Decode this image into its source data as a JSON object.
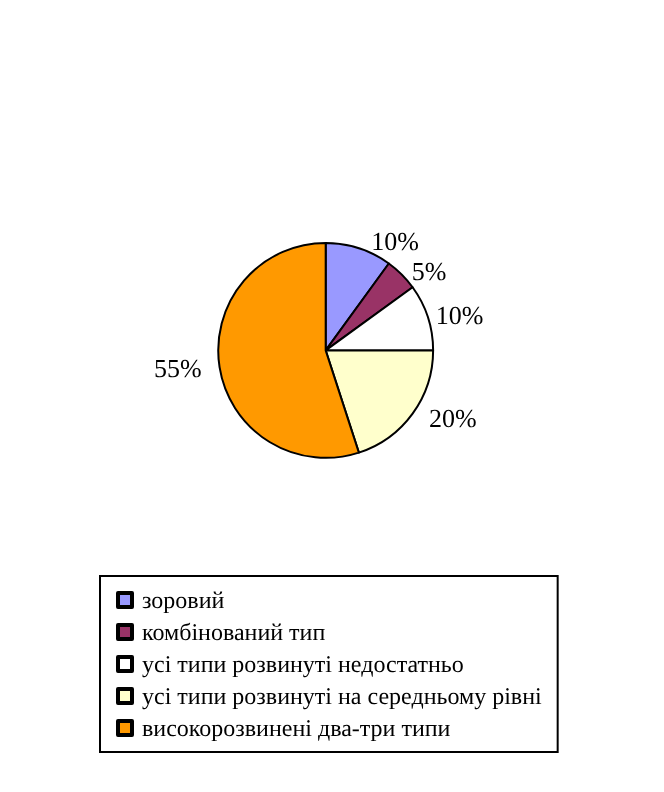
{
  "chart_data": {
    "type": "pie",
    "categories": [
      "зоровий",
      "комбінований тип",
      "усі типи розвинуті недостатньо",
      "усі типи розвинуті на середньому рівні",
      "високорозвинені два-три типи"
    ],
    "values": [
      10,
      5,
      10,
      20,
      55
    ],
    "colors": [
      "#9999ff",
      "#993366",
      "#ffffff",
      "#ffffcc",
      "#ff9900"
    ],
    "value_labels": [
      "10%",
      "5%",
      "10%",
      "20%",
      "55%"
    ],
    "legend": "bottom"
  }
}
